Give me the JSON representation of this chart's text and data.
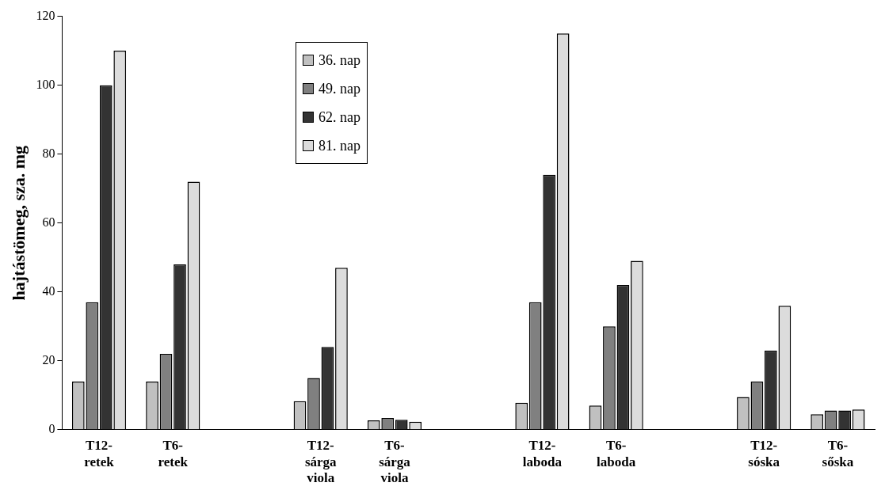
{
  "chart_data": {
    "type": "bar",
    "ylabel": "hajtástömeg, sza. mg",
    "categories": [
      "T12-retek",
      "T6-retek",
      null,
      "T12-sárga viola",
      "T6-sárga viola",
      null,
      "T12-laboda",
      "T6-laboda",
      null,
      "T12-sóska",
      "T6-sőska"
    ],
    "series": [
      {
        "name": "36. nap",
        "color": "#c0c0c0",
        "values": [
          14,
          14,
          null,
          8.3,
          2.7,
          null,
          7.8,
          7,
          null,
          9.5,
          4.5
        ]
      },
      {
        "name": "49. nap",
        "color": "#808080",
        "values": [
          37,
          22,
          null,
          15,
          3.4,
          null,
          37,
          30,
          null,
          14,
          5.6
        ]
      },
      {
        "name": "62. nap",
        "color": "#333333",
        "values": [
          100,
          48,
          null,
          24,
          2.9,
          null,
          74,
          42,
          null,
          23,
          5.6
        ]
      },
      {
        "name": "81. nap",
        "color": "#dcdcdc",
        "values": [
          110,
          72,
          null,
          47,
          2.3,
          null,
          115,
          49,
          null,
          36,
          5.9
        ]
      }
    ],
    "ylim": [
      0,
      120
    ],
    "yticks": [
      0,
      20,
      40,
      60,
      80,
      100,
      120
    ],
    "grid": false,
    "legend": "top"
  }
}
